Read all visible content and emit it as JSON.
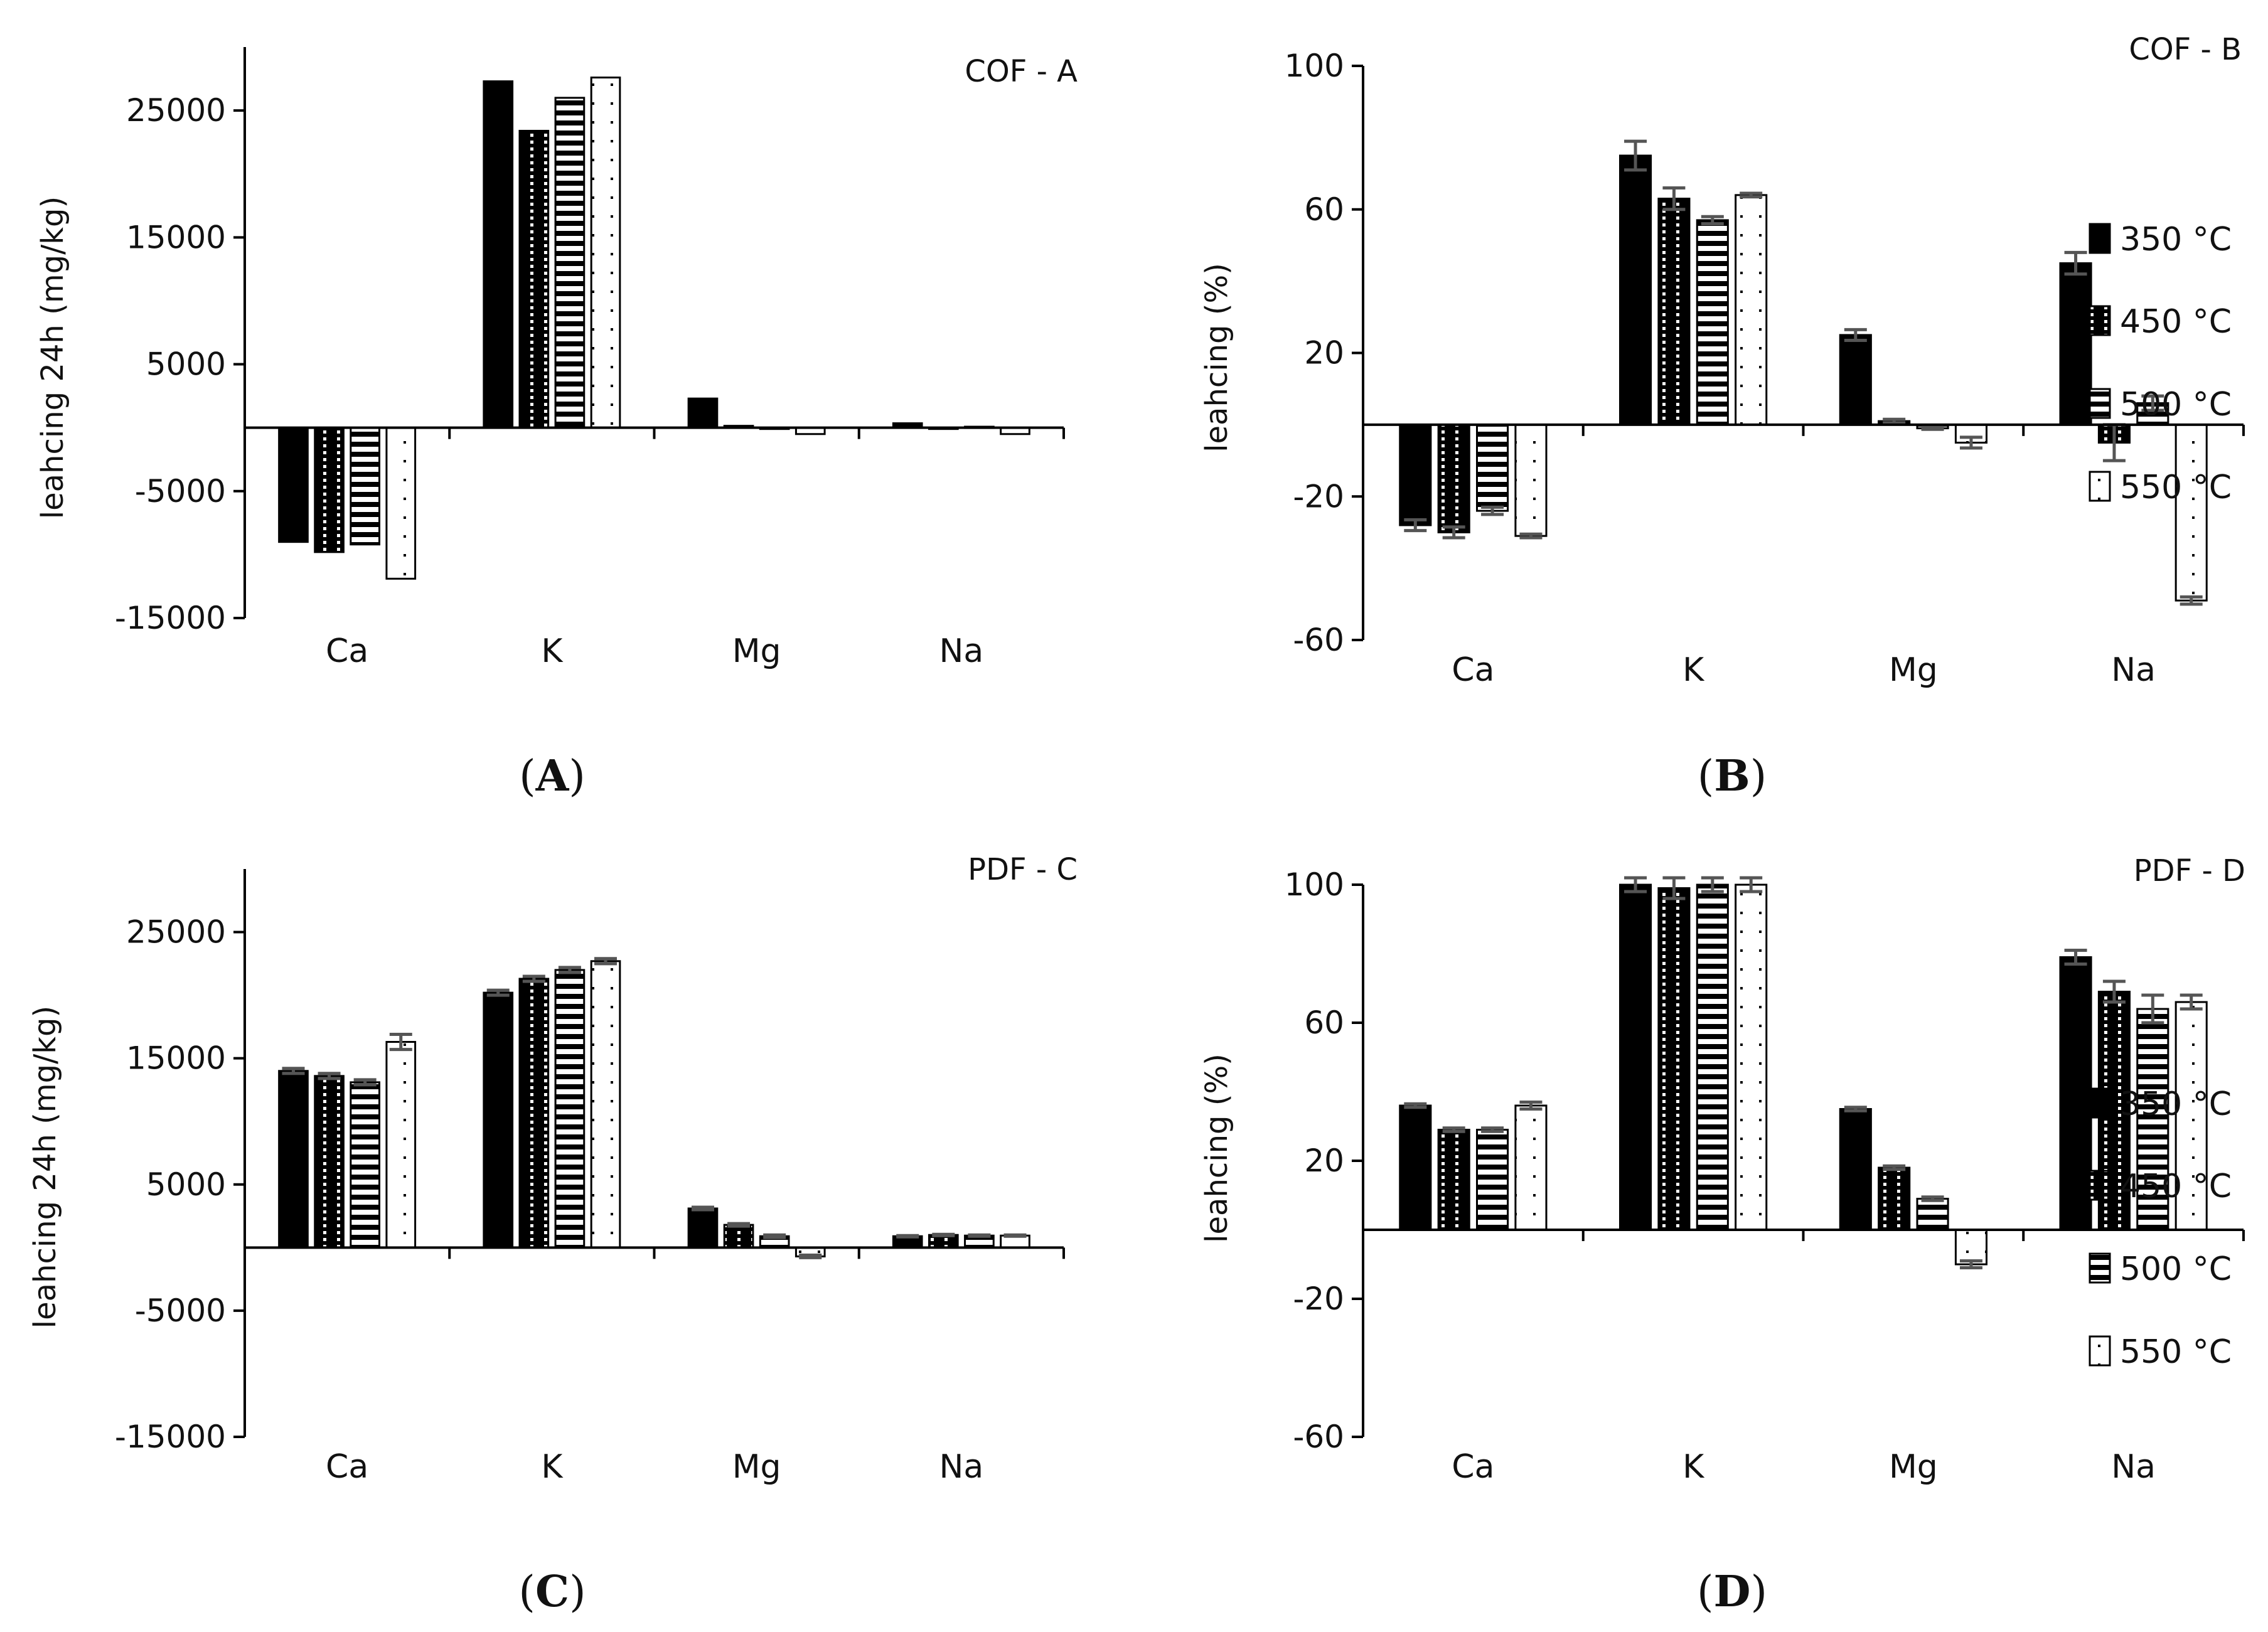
{
  "legend": [
    "350 °C",
    "450 °C",
    "500 °C",
    "550 °C"
  ],
  "chart_data": [
    {
      "type": "bar",
      "title": "COF - A",
      "panel_label": "A",
      "ylabel": "leahcing 24h (mg/kg)",
      "categories": [
        "Ca",
        "K",
        "Mg",
        "Na"
      ],
      "ylim": [
        -15000,
        30000
      ],
      "yticks": [
        25000,
        15000,
        5000,
        -5000,
        -15000
      ],
      "series": [
        {
          "name": "350 °C",
          "values": [
            -9000,
            27300,
            2300,
            350
          ],
          "errors": [
            0,
            0,
            0,
            0
          ]
        },
        {
          "name": "450 °C",
          "values": [
            -9800,
            23400,
            150,
            -80
          ],
          "errors": [
            0,
            0,
            0,
            0
          ]
        },
        {
          "name": "500 °C",
          "values": [
            -9200,
            26000,
            -100,
            80
          ],
          "errors": [
            0,
            0,
            0,
            0
          ]
        },
        {
          "name": "550 °C",
          "values": [
            -11900,
            27600,
            -500,
            -500
          ],
          "errors": [
            0,
            0,
            0,
            0
          ]
        }
      ]
    },
    {
      "type": "bar",
      "title": "COF - B",
      "panel_label": "B",
      "ylabel": "leahcing (%)",
      "categories": [
        "Ca",
        "K",
        "Mg",
        "Na"
      ],
      "ylim": [
        -60,
        100
      ],
      "yticks": [
        100,
        60,
        20,
        -20,
        -60
      ],
      "series": [
        {
          "name": "350 °C",
          "values": [
            -28,
            75,
            25,
            45
          ],
          "errors": [
            1.5,
            4,
            1.5,
            3
          ]
        },
        {
          "name": "450 °C",
          "values": [
            -30,
            63,
            1,
            -5
          ],
          "errors": [
            1.5,
            3,
            0.5,
            5
          ]
        },
        {
          "name": "500 °C",
          "values": [
            -24,
            57,
            -1,
            6
          ],
          "errors": [
            1,
            1,
            0.3,
            2
          ]
        },
        {
          "name": "550 °C",
          "values": [
            -31,
            64,
            -5,
            -49
          ],
          "errors": [
            0.5,
            0.5,
            1.5,
            1
          ]
        }
      ]
    },
    {
      "type": "bar",
      "title": "PDF - C",
      "panel_label": "C",
      "ylabel": "leahcing 24h (mg/kg)",
      "categories": [
        "Ca",
        "K",
        "Mg",
        "Na"
      ],
      "ylim": [
        -15000,
        30000
      ],
      "yticks": [
        25000,
        15000,
        5000,
        -5000,
        -15000
      ],
      "series": [
        {
          "name": "350 °C",
          "values": [
            14000,
            20200,
            3100,
            900
          ],
          "errors": [
            200,
            200,
            100,
            50
          ]
        },
        {
          "name": "450 °C",
          "values": [
            13600,
            21300,
            1800,
            1000
          ],
          "errors": [
            200,
            200,
            100,
            50
          ]
        },
        {
          "name": "500 °C",
          "values": [
            13100,
            22000,
            900,
            950
          ],
          "errors": [
            200,
            200,
            100,
            50
          ]
        },
        {
          "name": "550 °C",
          "values": [
            16300,
            22700,
            -700,
            950
          ],
          "errors": [
            600,
            200,
            100,
            50
          ]
        }
      ]
    },
    {
      "type": "bar",
      "title": "PDF - D",
      "panel_label": "D",
      "ylabel": "leahcing (%)",
      "categories": [
        "Ca",
        "K",
        "Mg",
        "Na"
      ],
      "ylim": [
        -60,
        100
      ],
      "yticks": [
        100,
        60,
        20,
        -20,
        -60
      ],
      "series": [
        {
          "name": "350 °C",
          "values": [
            36,
            100,
            35,
            79
          ],
          "errors": [
            0.5,
            2,
            0.5,
            2
          ]
        },
        {
          "name": "450 °C",
          "values": [
            29,
            99,
            18,
            69
          ],
          "errors": [
            0.5,
            3,
            0.5,
            3
          ]
        },
        {
          "name": "500 °C",
          "values": [
            29,
            100,
            9,
            64
          ],
          "errors": [
            0.5,
            2,
            0.5,
            4
          ]
        },
        {
          "name": "550 °C",
          "values": [
            36,
            100,
            -10,
            66
          ],
          "errors": [
            1,
            2,
            1,
            2
          ]
        }
      ]
    }
  ]
}
